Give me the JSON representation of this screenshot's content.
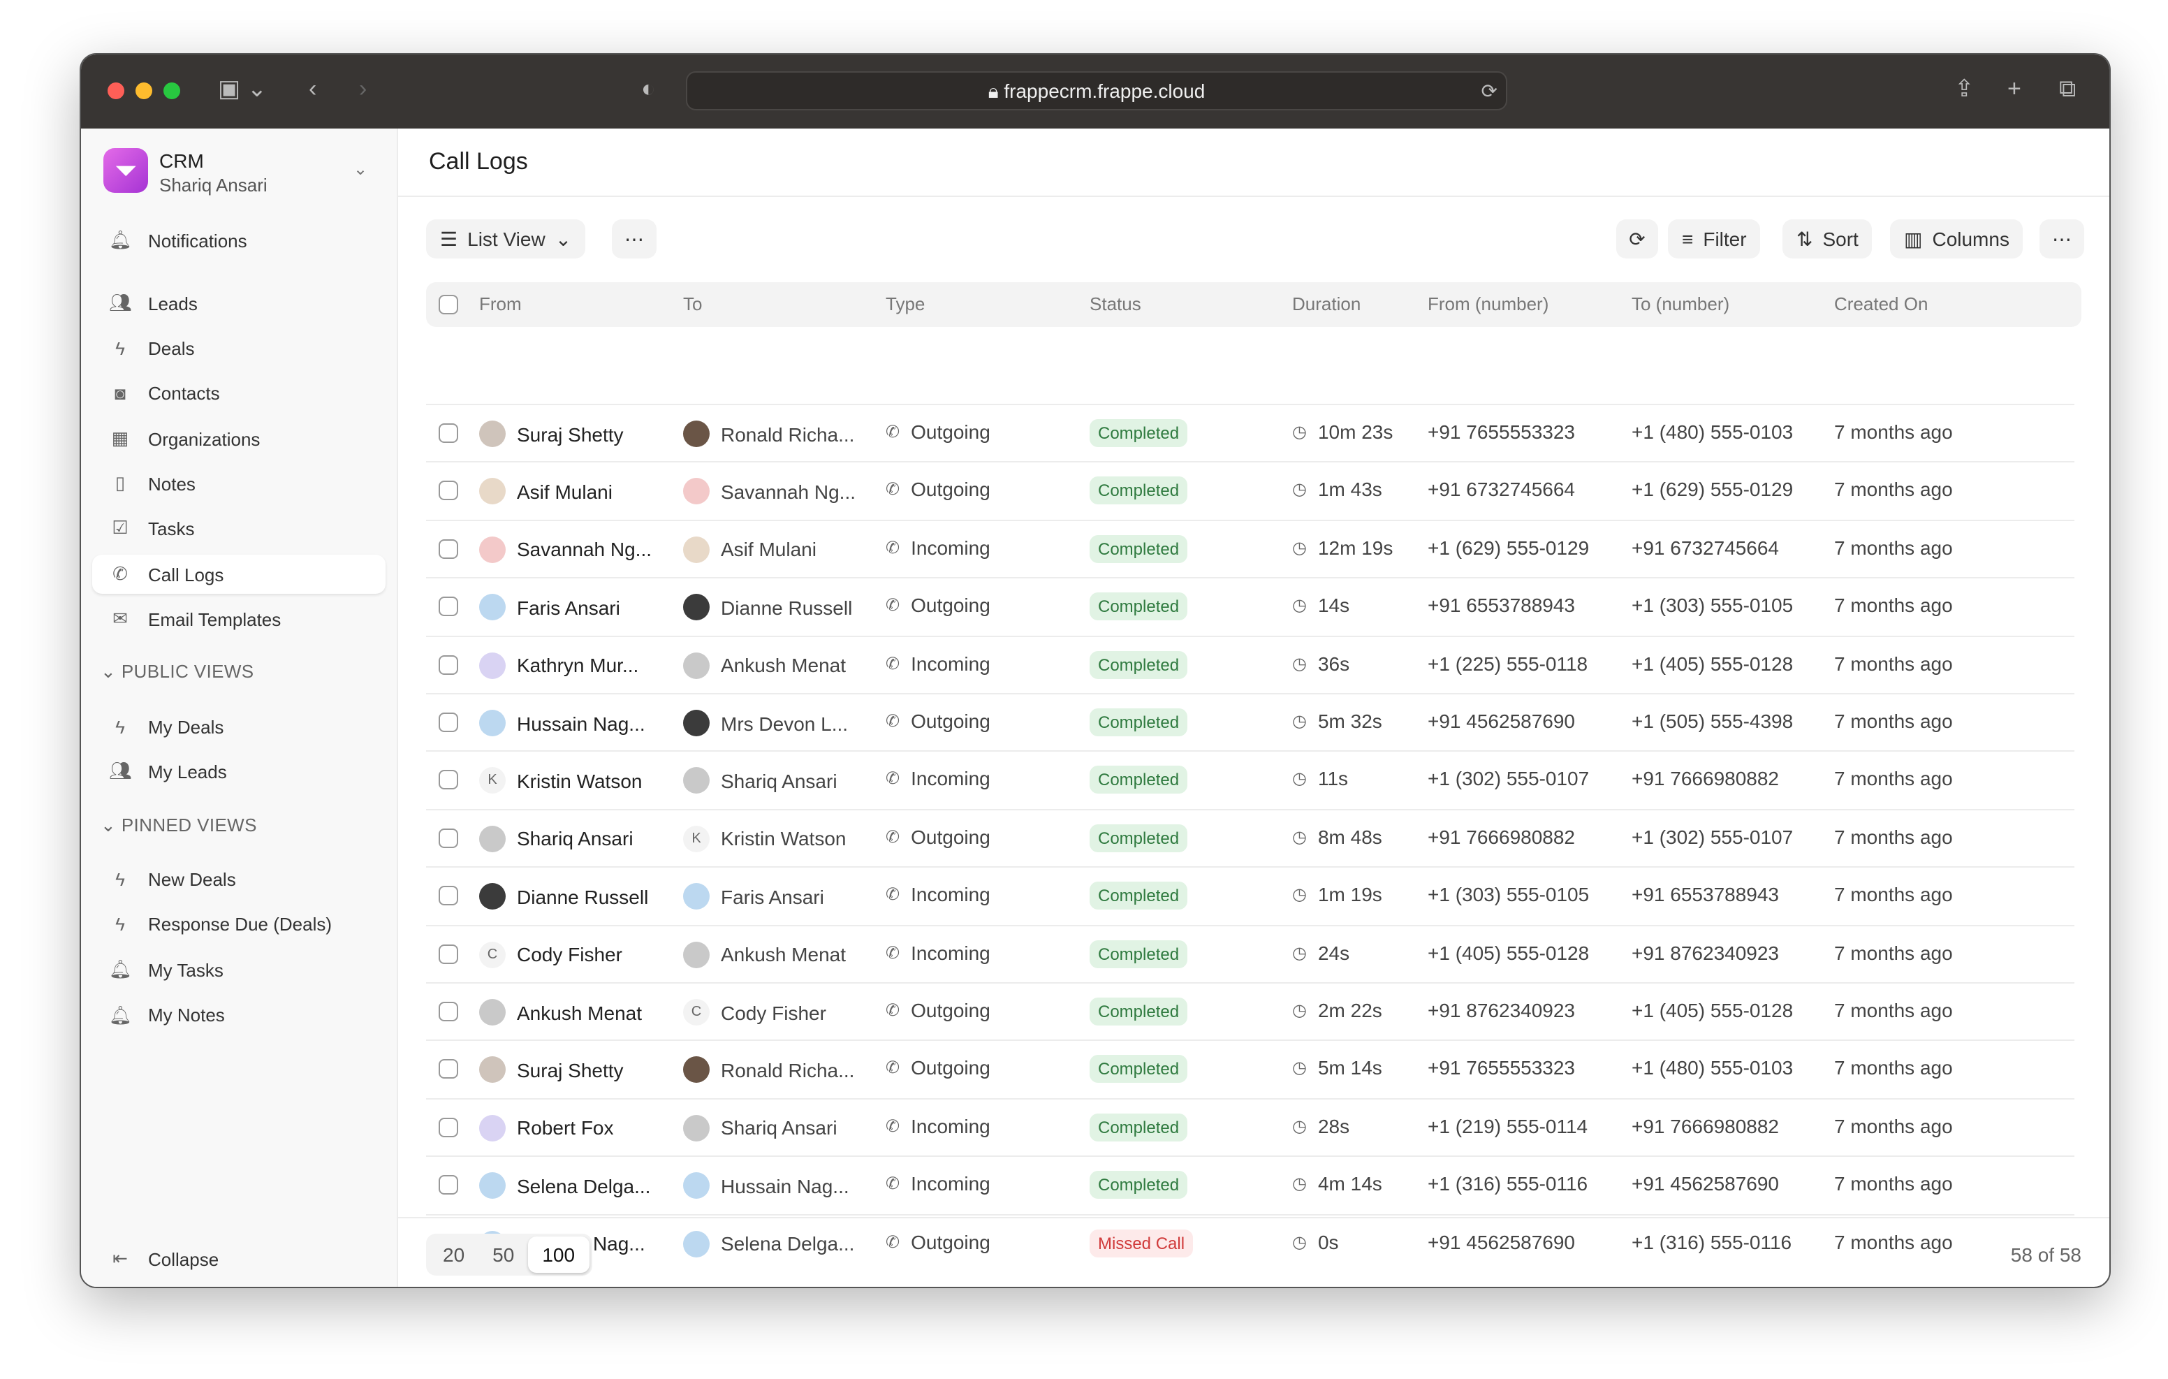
{
  "browser": {
    "url": "frappecrm.frappe.cloud"
  },
  "app": {
    "name": "CRM",
    "user": "Shariq Ansari",
    "page_title": "Call Logs"
  },
  "sidebar": {
    "items": [
      {
        "label": "Notifications",
        "icon": "bell-icon"
      },
      {
        "label": "Leads",
        "icon": "users-icon"
      },
      {
        "label": "Deals",
        "icon": "bolt-icon"
      },
      {
        "label": "Contacts",
        "icon": "contact-icon"
      },
      {
        "label": "Organizations",
        "icon": "building-icon"
      },
      {
        "label": "Notes",
        "icon": "file-icon"
      },
      {
        "label": "Tasks",
        "icon": "checkbox-icon"
      },
      {
        "label": "Call Logs",
        "icon": "phone-icon",
        "active": true
      },
      {
        "label": "Email Templates",
        "icon": "mail-icon"
      }
    ],
    "public_views_label": "PUBLIC VIEWS",
    "public_views": [
      {
        "label": "My Deals",
        "icon": "bolt-icon"
      },
      {
        "label": "My Leads",
        "icon": "users-icon"
      }
    ],
    "pinned_views_label": "PINNED VIEWS",
    "pinned_views": [
      {
        "label": "New Deals",
        "icon": "bolt-icon"
      },
      {
        "label": "Response Due (Deals)",
        "icon": "bolt-icon"
      },
      {
        "label": "My Tasks",
        "icon": "bell-icon"
      },
      {
        "label": "My Notes",
        "icon": "bell-icon"
      }
    ],
    "collapse": "Collapse"
  },
  "toolbar": {
    "view": "List View",
    "filter": "Filter",
    "sort": "Sort",
    "columns": "Columns"
  },
  "table": {
    "columns": [
      "From",
      "To",
      "Type",
      "Status",
      "Duration",
      "From (number)",
      "To (number)",
      "Created On"
    ],
    "rows": [
      [
        "Suraj Shetty",
        "Ronald Richa...",
        "Outgoing",
        "Completed",
        "10m 23s",
        "+91 7655553323",
        "+1 (480) 555-0103",
        "7 months ago"
      ],
      [
        "Asif Mulani",
        "Savannah Ng...",
        "Outgoing",
        "Completed",
        "1m 43s",
        "+91 6732745664",
        "+1 (629) 555-0129",
        "7 months ago"
      ],
      [
        "Savannah Ng...",
        "Asif Mulani",
        "Incoming",
        "Completed",
        "12m 19s",
        "+1 (629) 555-0129",
        "+91 6732745664",
        "7 months ago"
      ],
      [
        "Faris Ansari",
        "Dianne Russell",
        "Outgoing",
        "Completed",
        "14s",
        "+91 6553788943",
        "+1 (303) 555-0105",
        "7 months ago"
      ],
      [
        "Kathryn Mur...",
        "Ankush Menat",
        "Incoming",
        "Completed",
        "36s",
        "+1 (225) 555-0118",
        "+1 (405) 555-0128",
        "7 months ago"
      ],
      [
        "Hussain Nag...",
        "Mrs Devon L...",
        "Outgoing",
        "Completed",
        "5m 32s",
        "+91 4562587690",
        "+1 (505) 555-4398",
        "7 months ago"
      ],
      [
        "Kristin Watson",
        "Shariq Ansari",
        "Incoming",
        "Completed",
        "11s",
        "+1 (302) 555-0107",
        "+91 7666980882",
        "7 months ago"
      ],
      [
        "Shariq Ansari",
        "Kristin Watson",
        "Outgoing",
        "Completed",
        "8m 48s",
        "+91 7666980882",
        "+1 (302) 555-0107",
        "7 months ago"
      ],
      [
        "Dianne Russell",
        "Faris Ansari",
        "Incoming",
        "Completed",
        "1m 19s",
        "+1 (303) 555-0105",
        "+91 6553788943",
        "7 months ago"
      ],
      [
        "Cody Fisher",
        "Ankush Menat",
        "Incoming",
        "Completed",
        "24s",
        "+1 (405) 555-0128",
        "+91 8762340923",
        "7 months ago"
      ],
      [
        "Ankush Menat",
        "Cody Fisher",
        "Outgoing",
        "Completed",
        "2m 22s",
        "+91 8762340923",
        "+1 (405) 555-0128",
        "7 months ago"
      ],
      [
        "Suraj Shetty",
        "Ronald Richa...",
        "Outgoing",
        "Completed",
        "5m 14s",
        "+91 7655553323",
        "+1 (480) 555-0103",
        "7 months ago"
      ],
      [
        "Robert Fox",
        "Shariq Ansari",
        "Incoming",
        "Completed",
        "28s",
        "+1 (219) 555-0114",
        "+91 7666980882",
        "7 months ago"
      ],
      [
        "Selena Delga...",
        "Hussain Nag...",
        "Incoming",
        "Completed",
        "4m 14s",
        "+1 (316) 555-0116",
        "+91 4562587690",
        "7 months ago"
      ],
      [
        "Hussain Nag...",
        "Selena Delga...",
        "Outgoing",
        "Missed Call",
        "0s",
        "+91 4562587690",
        "+1 (316) 555-0116",
        "7 months ago"
      ]
    ]
  },
  "letter_avatars": {
    "Kristin Watson": "K",
    "Cody Fisher": "C"
  },
  "pagination": {
    "sizes": [
      "20",
      "50",
      "100"
    ],
    "selected": "100",
    "count": "58 of 58"
  },
  "colors": {
    "completed_bg": "#e1f3e4",
    "completed_fg": "#2f7a3f",
    "missed_bg": "#fdeaea",
    "missed_fg": "#d03a3a",
    "brand": "#c94ee0"
  }
}
